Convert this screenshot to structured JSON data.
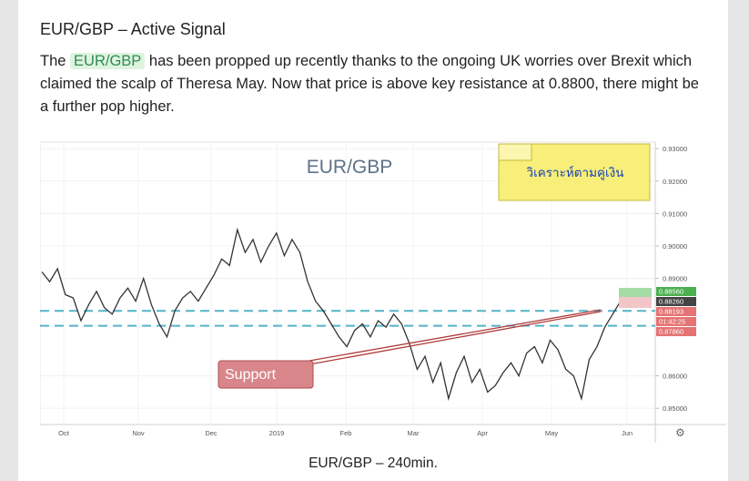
{
  "article": {
    "heading": "EUR/GBP – Active Signal",
    "para_before": "The ",
    "pair_tag": "EUR/GBP",
    "para_after": " has been propped up recently thanks to the ongoing UK worries over Brexit which claimed the scalp of Theresa May. Now that price is above key resistance at 0.8800, there might be a further pop higher.",
    "caption": "EUR/GBP – 240min."
  },
  "chart_data": {
    "type": "line",
    "watermark": "EUR/GBP",
    "note": "วิเคราะห์ตามคู่เงิน",
    "support_label": "Support",
    "ylim": [
      0.845,
      0.932
    ],
    "y_ticks": [
      "0.93000",
      "0.92000",
      "0.91000",
      "0.90000",
      "0.89000",
      "0.86000",
      "0.85000"
    ],
    "x_ticks": [
      "Oct",
      "Nov",
      "Dec",
      "2019",
      "Feb",
      "Mar",
      "Apr",
      "May",
      "Jun"
    ],
    "price_labels": [
      {
        "text": "0.88560",
        "color": "#4caf50"
      },
      {
        "text": "0.88260",
        "color": "#444444"
      },
      {
        "text": "0.88193",
        "color": "#e57373"
      },
      {
        "text": "01:42:25",
        "color": "#e57373"
      },
      {
        "text": "0.87860",
        "color": "#e57373"
      }
    ],
    "levels": [
      0.88,
      0.8754
    ],
    "series": [
      {
        "values": [
          0.892,
          0.889,
          0.893,
          0.885,
          0.884,
          0.877,
          0.882,
          0.886,
          0.881,
          0.879,
          0.884,
          0.887,
          0.883,
          0.89,
          0.882,
          0.876,
          0.872,
          0.88,
          0.884,
          0.886,
          0.883,
          0.887,
          0.891,
          0.896,
          0.894,
          0.905,
          0.898,
          0.902,
          0.895,
          0.9,
          0.904,
          0.897,
          0.902,
          0.898,
          0.889,
          0.883,
          0.88,
          0.876,
          0.872,
          0.869,
          0.874,
          0.876,
          0.872,
          0.877,
          0.875,
          0.879,
          0.876,
          0.87,
          0.862,
          0.866,
          0.858,
          0.864,
          0.853,
          0.861,
          0.866,
          0.858,
          0.862,
          0.855,
          0.857,
          0.861,
          0.864,
          0.86,
          0.867,
          0.869,
          0.864,
          0.871,
          0.868,
          0.862,
          0.86,
          0.853,
          0.865,
          0.869,
          0.875,
          0.879,
          0.883,
          0.886,
          0.882
        ]
      }
    ]
  }
}
